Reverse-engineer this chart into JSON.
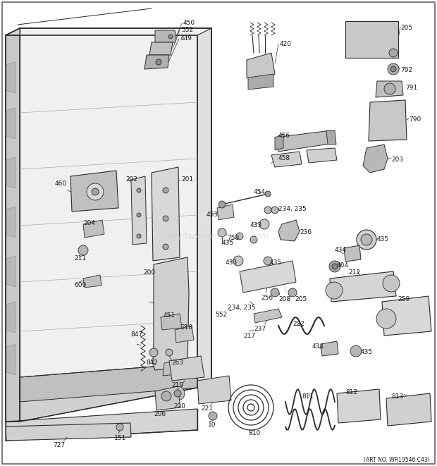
{
  "bg_color": "#ffffff",
  "art_no": "(ART NO. WR19546 C43)",
  "watermark": "ReplacementParts.com",
  "line_color": "#2a2a2a",
  "text_color": "#1a1a1a",
  "watermark_color": "#cccccc",
  "fig_w": 6.2,
  "fig_h": 6.61,
  "dpi": 100
}
